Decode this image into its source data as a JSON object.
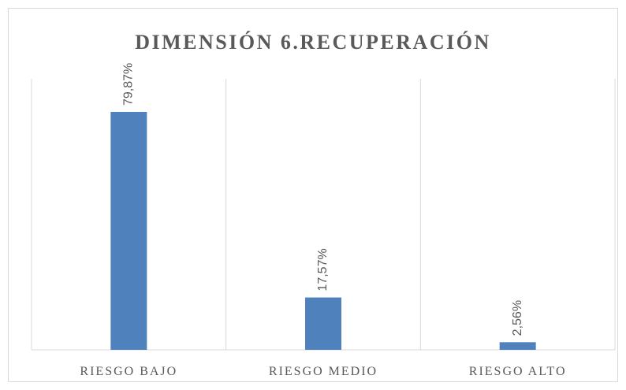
{
  "chart_data": {
    "type": "bar",
    "title": "DIMENSIÓN 6.RECUPERACIÓN",
    "categories": [
      "RIESGO BAJO",
      "RIESGO MEDIO",
      "RIESGO ALTO"
    ],
    "values": [
      79.87,
      17.57,
      2.56
    ],
    "value_labels": [
      "79,87%",
      "17,57%",
      "2,56%"
    ],
    "color": "#4f81bd"
  }
}
